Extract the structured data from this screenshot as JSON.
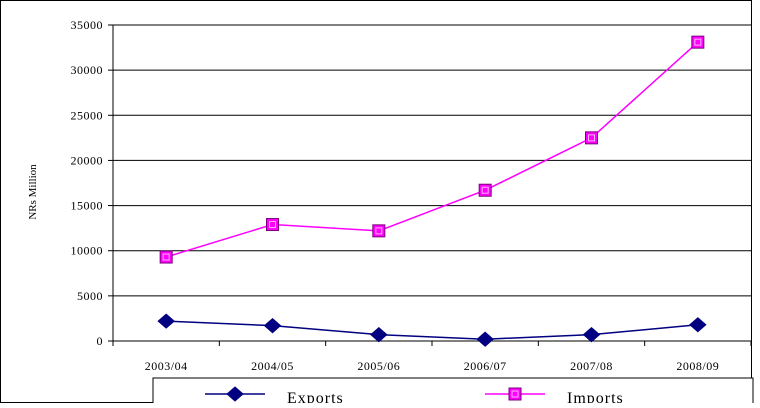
{
  "chart_data": {
    "type": "line",
    "title": "",
    "xlabel": "",
    "ylabel": "NRs Million",
    "categories": [
      "2003/04",
      "2004/05",
      "2005/06",
      "2006/07",
      "2007/08",
      "2008/09"
    ],
    "ylim": [
      0,
      35000
    ],
    "yticks": [
      "0",
      "5000",
      "10000",
      "15000",
      "20000",
      "25000",
      "30000",
      "35000"
    ],
    "grid": true,
    "legend": "bottom",
    "series": [
      {
        "name": "Exports",
        "color": "#000080",
        "marker": "diamond",
        "values": [
          2200,
          1700,
          700,
          200,
          700,
          1800
        ]
      },
      {
        "name": "Imports",
        "color": "#FF00FF",
        "marker": "square",
        "values": [
          9300,
          12900,
          12200,
          16700,
          22500,
          33100
        ]
      }
    ]
  }
}
